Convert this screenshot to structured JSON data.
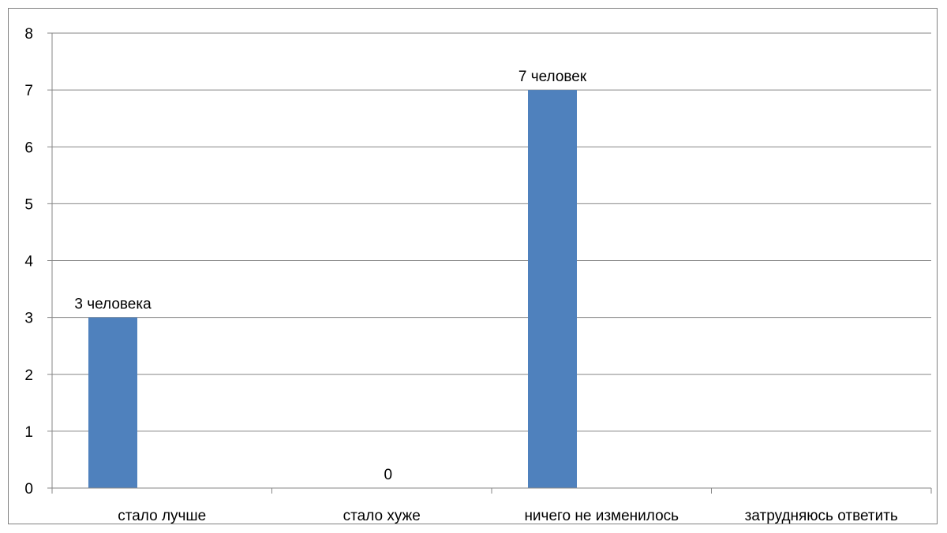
{
  "chart_data": {
    "type": "bar",
    "categories": [
      "стало лучше",
      "стало хуже",
      "ничего не изменилось",
      "затрудняюсь ответить"
    ],
    "values": [
      3,
      0,
      7,
      0
    ],
    "data_labels": [
      "3 человека",
      "0",
      "7  человек",
      ""
    ],
    "ylim": [
      0,
      8
    ],
    "yticks": [
      "0",
      "1",
      "2",
      "3",
      "4",
      "5",
      "6",
      "7",
      "8"
    ],
    "grid": true,
    "legend": "none",
    "bar_color": "#4f81bd",
    "gridline_color": "#868686"
  }
}
